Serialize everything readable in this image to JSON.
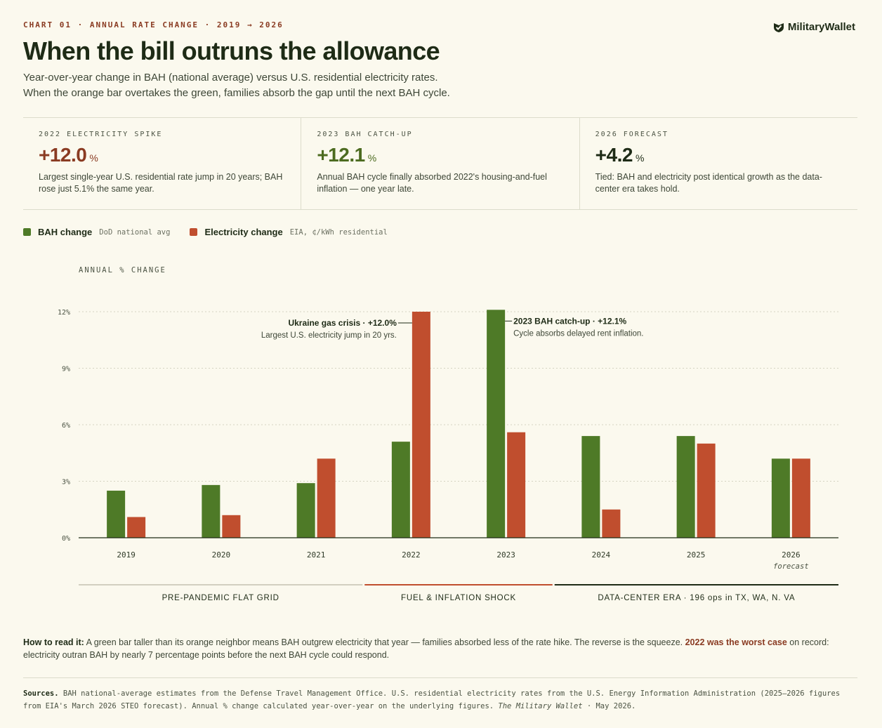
{
  "header": {
    "eyebrow": "CHART 01 · ANNUAL RATE CHANGE · 2019 → 2026",
    "title": "When the bill outruns the allowance",
    "subtitle_line1": "Year-over-year change in BAH (national average) versus U.S. residential electricity rates.",
    "subtitle_line2": "When the orange bar overtakes the green, families absorb the gap until the next BAH cycle.",
    "brand": "MilitaryWallet",
    "brand_icon": "shield-check-icon"
  },
  "stats": [
    {
      "label": "2022 ELECTRICITY SPIKE",
      "value": "+12.0",
      "unit": "%",
      "color": "#8a3b22",
      "desc": "Largest single-year U.S. residential rate jump in 20 years; BAH rose just 5.1% the same year."
    },
    {
      "label": "2023 BAH CATCH-UP",
      "value": "+12.1",
      "unit": "%",
      "color": "#4c6b20",
      "desc": "Annual BAH cycle finally absorbed 2022's housing-and-fuel inflation — one year late."
    },
    {
      "label": "2026 FORECAST",
      "value": "+4.2",
      "unit": "%",
      "color": "#1e2b16",
      "desc": "Tied: BAH and electricity post identical growth as the data-center era takes hold."
    }
  ],
  "legend": [
    {
      "name": "BAH change",
      "note": "DoD national avg",
      "color": "#4e7a27"
    },
    {
      "name": "Electricity change",
      "note": "EIA, ¢/kWh residential",
      "color": "#c04e2e"
    }
  ],
  "chart_data": {
    "type": "bar",
    "ylabel": "ANNUAL % CHANGE",
    "ylim": [
      0,
      12.5
    ],
    "yticks": [
      0,
      3,
      6,
      9,
      12
    ],
    "ytick_labels": [
      "0%",
      "3%",
      "6%",
      "9%",
      "12%"
    ],
    "grid": true,
    "categories": [
      "2019",
      "2020",
      "2021",
      "2022",
      "2023",
      "2024",
      "2025",
      "2026"
    ],
    "category_notes": [
      "",
      "",
      "",
      "",
      "",
      "",
      "",
      "forecast"
    ],
    "series": [
      {
        "name": "BAH change",
        "color": "#4e7a27",
        "values": [
          2.5,
          2.8,
          2.9,
          5.1,
          12.1,
          5.4,
          5.4,
          4.2
        ]
      },
      {
        "name": "Electricity change",
        "color": "#c04e2e",
        "values": [
          1.1,
          1.2,
          4.2,
          12.0,
          5.6,
          1.5,
          5.0,
          4.2
        ]
      }
    ],
    "annotations": [
      {
        "category": "2022",
        "series": 1,
        "title": "Ukraine gas crisis · +12.0%",
        "text": "Largest U.S. electricity jump in 20 yrs.",
        "side": "left"
      },
      {
        "category": "2023",
        "series": 0,
        "title": "2023 BAH catch-up · +12.1%",
        "text": "Cycle absorbs delayed rent inflation.",
        "side": "right"
      }
    ],
    "eras": [
      {
        "label": "PRE-PANDEMIC FLAT GRID",
        "from": "2019",
        "to": "2021",
        "color": "#a8a592"
      },
      {
        "label": "FUEL & INFLATION SHOCK",
        "from": "2022",
        "to": "2023",
        "color": "#c04e2e"
      },
      {
        "label": "DATA-CENTER ERA · 196 ops in TX, WA, N. VA",
        "from": "2024",
        "to": "2026",
        "color": "#1e2b16"
      }
    ]
  },
  "howto": {
    "lead": "How to read it:",
    "text1": " A green bar taller than its orange neighbor means BAH outgrew electricity that year — families absorbed less of the rate hike. The reverse is the squeeze. ",
    "highlight": "2022 was the worst case",
    "text2": " on record: electricity outran BAH by nearly 7 percentage points before the next BAH cycle could respond."
  },
  "sources": {
    "lead": "Sources.",
    "text": " BAH national-average estimates from the Defense Travel Management Office. U.S. residential electricity rates from the U.S. Energy Information Administration (2025–2026 figures from EIA's March 2026 STEO forecast). Annual % change calculated year-over-year on the underlying figures. ",
    "publication": "The Military Wallet",
    "date": " · May 2026."
  }
}
